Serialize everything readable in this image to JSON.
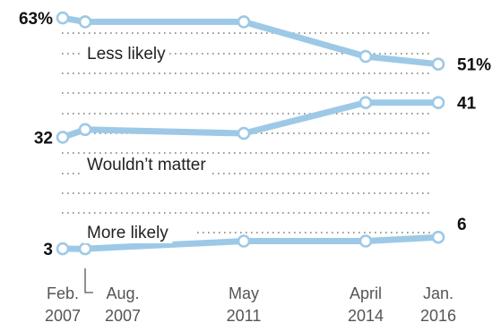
{
  "chart_data": {
    "type": "line",
    "x": [
      "Feb. 2007",
      "Aug. 2007",
      "May 2011",
      "April 2014",
      "Jan. 2016"
    ],
    "x_tick_labels": [
      {
        "line1": "Feb.",
        "line2": "2007"
      },
      {
        "line1": "Aug.",
        "line2": "2007"
      },
      {
        "line1": "May",
        "line2": "2011"
      },
      {
        "line1": "April",
        "line2": "2014"
      },
      {
        "line1": "Jan.",
        "line2": "2016"
      }
    ],
    "series": [
      {
        "name": "Less likely",
        "values": [
          63,
          62,
          62,
          53,
          51
        ],
        "start_label": "63%",
        "end_label": "51%"
      },
      {
        "name": "Wouldn’t matter",
        "values": [
          32,
          34,
          33,
          41,
          41
        ],
        "start_label": "32",
        "end_label": "41"
      },
      {
        "name": "More likely",
        "values": [
          3,
          3,
          5,
          5,
          6
        ],
        "start_label": "3",
        "end_label": "6"
      }
    ],
    "ylim": [
      0,
      65
    ],
    "grid": true,
    "color": "#9dc9e6"
  }
}
